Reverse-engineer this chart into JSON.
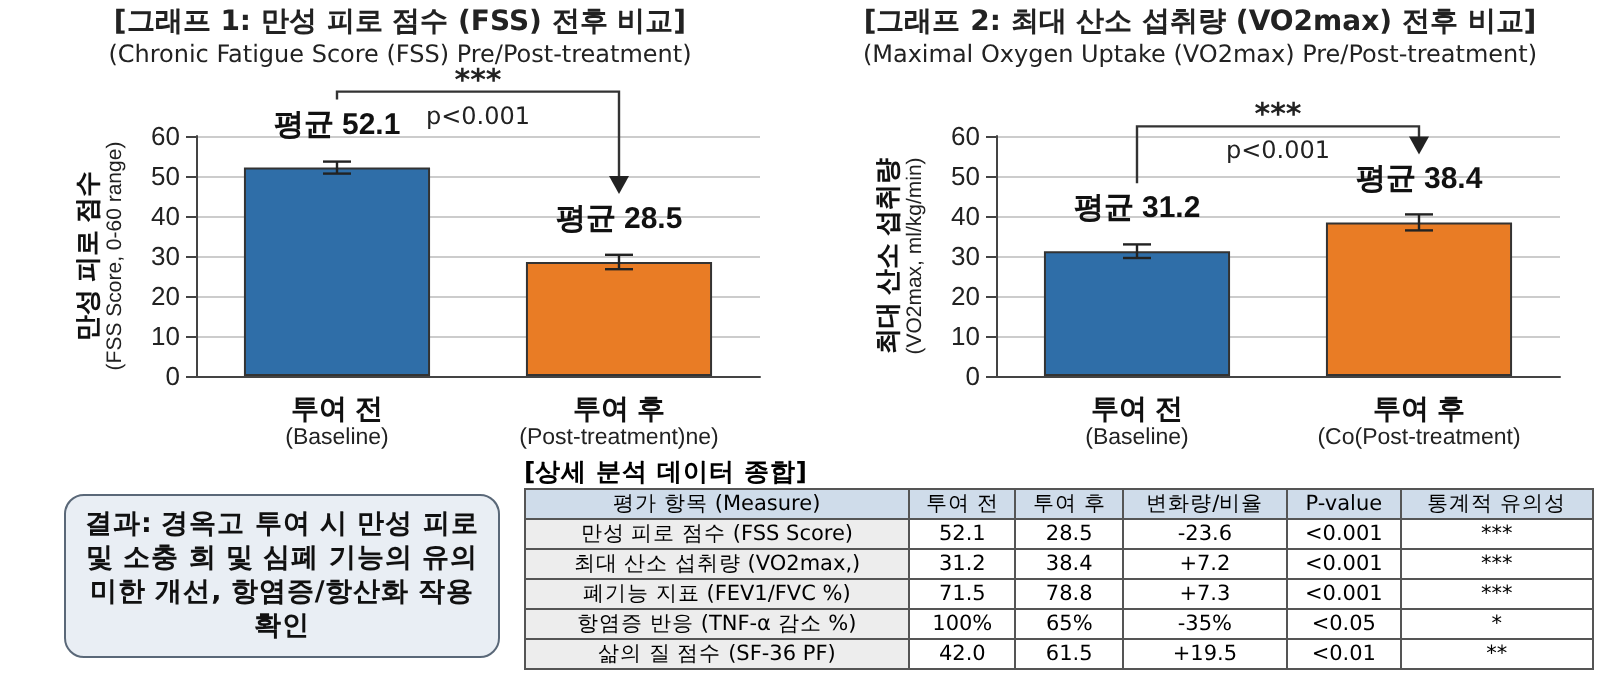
{
  "chart_data": [
    {
      "type": "bar",
      "title": "[그래프 1: 만성 피로 점수 (FSS) 전후 비교]",
      "subtitle": "(Chronic Fatigue Score (FSS) Pre/Post-treatment)",
      "ylabel": "만성 피로 점수\n(FSS Score, 0-60 range)",
      "categories": [
        "투여 전\n(Baseline)",
        "투여 후\n(Post-treatment)ne)"
      ],
      "values": [
        52.1,
        28.5
      ],
      "colors": [
        "#2f6ea8",
        "#e97c25"
      ],
      "errors": [
        1.5,
        1.8
      ],
      "value_labels": [
        "평균 52.1",
        "평균 28.5"
      ],
      "ylim": [
        0,
        60
      ],
      "yticks": [
        0,
        10,
        20,
        30,
        40,
        50,
        60
      ],
      "grid": "y",
      "annotations": [
        "***",
        "p<0.001"
      ]
    },
    {
      "type": "bar",
      "title": "[그래프 2: 최대 산소 섭취량 (VO2max) 전후 비교]",
      "subtitle": "(Maximal Oxygen Uptake (VO2max) Pre/Post-treatment)",
      "ylabel": "최대 산소 섭취량\n(VO2max, ml/kg/min)",
      "categories": [
        "투여 전\n(Baseline)",
        "투여 후\n(Co(Post-treatment)"
      ],
      "values": [
        31.2,
        38.4
      ],
      "colors": [
        "#2f6ea8",
        "#e97c25"
      ],
      "errors": [
        1.7,
        2.0
      ],
      "value_labels": [
        "평균 31.2",
        "평균 38.4"
      ],
      "ylim": [
        0,
        60
      ],
      "yticks": [
        0,
        10,
        20,
        30,
        40,
        50,
        60
      ],
      "grid": "y",
      "annotations": [
        "***",
        "p<0.001"
      ]
    },
    {
      "type": "other",
      "annotations": [
        "결과: 경옥고 투여 시 만성 피로 및 소충 희 및 심폐 기능의 유의미한 개선, 항염증/항산화 작용 확인"
      ]
    },
    {
      "type": "other",
      "title": "[상세 분석 데이터 종합]",
      "categories": [
        "평가 항목 (Measure)",
        "투여 전",
        "투여 후",
        "변화량/비율",
        "P-value",
        "통계적 유의성"
      ],
      "y_categories": [
        "만성 피로 점수 (FSS Score)",
        "최대 산소 섭취량 (VO2max,)",
        "폐기능 지표 (FEV1/FVC %)",
        "항염증 반응 (TNF-α 감소 %)",
        "삶의 질 점수 (SF-36 PF)"
      ],
      "cell_labels": [
        [
          "52.1",
          "28.5",
          "-23.6",
          "<0.001",
          "***"
        ],
        [
          "31.2",
          "38.4",
          "+7.2",
          "<0.001",
          "***"
        ],
        [
          "71.5",
          "78.8",
          "+7.3",
          "<0.001",
          "***"
        ],
        [
          "100%",
          "65%",
          "-35%",
          "<0.05",
          "*"
        ],
        [
          "42.0",
          "61.5",
          "+19.5",
          "<0.01",
          "**"
        ]
      ]
    }
  ]
}
